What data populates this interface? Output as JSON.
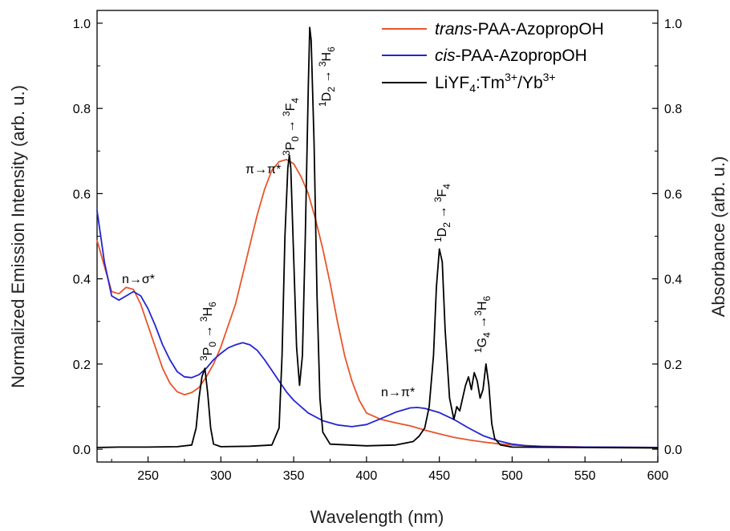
{
  "chart_data": {
    "type": "line",
    "xlabel": "Wavelength (nm)",
    "ylabel_left": "Normalized Emission Intensity (arb. u.)",
    "ylabel_right": "Absorbance (arb. u.)",
    "xlim": [
      215,
      600
    ],
    "ylim": [
      -0.03,
      1.03
    ],
    "x_ticks": [
      "250",
      "300",
      "350",
      "400",
      "450",
      "500",
      "550",
      "600"
    ],
    "y_ticks": [
      "0.0",
      "0.2",
      "0.4",
      "0.6",
      "0.8",
      "1.0"
    ],
    "grid": false,
    "legend_position": "top-right",
    "legend": {
      "trans": {
        "prefix": "trans",
        "rest": "-PAA-AzopropOH"
      },
      "cis": {
        "prefix": "cis",
        "rest": "-PAA-AzopropOH"
      },
      "lumin": {
        "main": "LiYF",
        "sub": "4",
        "mid": ":Tm",
        "sup1": "3+",
        "mid2": "/Yb",
        "sup2": "3+"
      }
    },
    "annotations": {
      "n_sigma": "n→σ*",
      "pi_pi": "π→π*",
      "n_pi": "n→π*",
      "t1": {
        "sup1": "3",
        "a": "P",
        "sub1": "0",
        "arrow": " → ",
        "sup2": "3",
        "b": "H",
        "sub2": "6"
      },
      "t2": {
        "sup1": "3",
        "a": "P",
        "sub1": "0",
        "arrow": " → ",
        "sup2": "3",
        "b": "F",
        "sub2": "4"
      },
      "t3": {
        "sup1": "1",
        "a": "D",
        "sub1": "2",
        "arrow": " → ",
        "sup2": "3",
        "b": "H",
        "sub2": "6"
      },
      "t4": {
        "sup1": "1",
        "a": "D",
        "sub1": "2",
        "arrow": " → ",
        "sup2": "3",
        "b": "F",
        "sub2": "4"
      },
      "t5": {
        "sup1": "1",
        "a": "G",
        "sub1": "4",
        "arrow": " →",
        "sup2": "3",
        "b": "H",
        "sub2": "6"
      }
    },
    "series": [
      {
        "name": "trans-PAA-AzopropOH",
        "color": "#e8552a",
        "x": [
          215,
          220,
          225,
          230,
          235,
          240,
          245,
          250,
          255,
          260,
          265,
          270,
          275,
          280,
          285,
          290,
          295,
          300,
          305,
          310,
          315,
          320,
          325,
          330,
          335,
          340,
          345,
          350,
          355,
          360,
          365,
          370,
          375,
          380,
          385,
          390,
          395,
          400,
          410,
          420,
          430,
          440,
          450,
          460,
          470,
          480,
          490,
          500,
          520,
          550,
          600
        ],
        "y": [
          0.49,
          0.43,
          0.37,
          0.365,
          0.38,
          0.375,
          0.34,
          0.29,
          0.24,
          0.19,
          0.155,
          0.135,
          0.128,
          0.133,
          0.145,
          0.17,
          0.2,
          0.24,
          0.29,
          0.34,
          0.41,
          0.48,
          0.55,
          0.61,
          0.655,
          0.675,
          0.68,
          0.67,
          0.64,
          0.6,
          0.54,
          0.47,
          0.39,
          0.3,
          0.22,
          0.16,
          0.115,
          0.085,
          0.07,
          0.062,
          0.055,
          0.045,
          0.036,
          0.028,
          0.022,
          0.017,
          0.013,
          0.01,
          0.007,
          0.005,
          0.004
        ]
      },
      {
        "name": "cis-PAA-AzopropOH",
        "color": "#2424d4",
        "x": [
          215,
          220,
          225,
          230,
          235,
          240,
          245,
          250,
          255,
          260,
          265,
          270,
          275,
          280,
          285,
          290,
          295,
          300,
          305,
          310,
          315,
          320,
          325,
          330,
          335,
          340,
          345,
          350,
          355,
          360,
          370,
          380,
          390,
          400,
          410,
          420,
          430,
          435,
          440,
          450,
          460,
          470,
          480,
          490,
          500,
          510,
          520,
          550,
          600
        ],
        "y": [
          0.56,
          0.44,
          0.36,
          0.35,
          0.36,
          0.37,
          0.36,
          0.33,
          0.29,
          0.245,
          0.21,
          0.182,
          0.17,
          0.168,
          0.175,
          0.19,
          0.21,
          0.225,
          0.238,
          0.245,
          0.25,
          0.245,
          0.232,
          0.21,
          0.185,
          0.16,
          0.135,
          0.115,
          0.1,
          0.085,
          0.067,
          0.057,
          0.053,
          0.058,
          0.072,
          0.087,
          0.097,
          0.098,
          0.096,
          0.086,
          0.07,
          0.05,
          0.032,
          0.02,
          0.012,
          0.008,
          0.006,
          0.005,
          0.004
        ]
      },
      {
        "name": "LiYF4:Tm3+/Yb3+",
        "color": "#000000",
        "x": [
          215,
          230,
          250,
          270,
          280,
          283,
          285,
          287,
          289,
          291,
          293,
          295,
          300,
          320,
          335,
          340,
          342,
          344,
          346,
          347,
          348,
          350,
          352,
          354,
          356,
          358,
          360,
          361,
          362,
          364,
          366,
          368,
          370,
          375,
          400,
          420,
          432,
          436,
          440,
          443,
          446,
          448,
          450,
          452,
          454,
          457,
          460,
          462,
          464,
          466,
          468,
          470,
          472,
          474,
          476,
          478,
          480,
          482,
          484,
          486,
          488,
          492,
          500,
          550,
          600
        ],
        "y": [
          0.004,
          0.005,
          0.005,
          0.006,
          0.01,
          0.05,
          0.12,
          0.17,
          0.19,
          0.13,
          0.05,
          0.012,
          0.006,
          0.007,
          0.01,
          0.05,
          0.22,
          0.5,
          0.66,
          0.69,
          0.66,
          0.45,
          0.24,
          0.15,
          0.22,
          0.5,
          0.85,
          0.99,
          0.96,
          0.72,
          0.36,
          0.12,
          0.04,
          0.012,
          0.008,
          0.01,
          0.018,
          0.03,
          0.05,
          0.1,
          0.22,
          0.38,
          0.47,
          0.44,
          0.28,
          0.12,
          0.07,
          0.1,
          0.09,
          0.12,
          0.15,
          0.17,
          0.14,
          0.18,
          0.16,
          0.12,
          0.14,
          0.2,
          0.15,
          0.06,
          0.025,
          0.01,
          0.005,
          0.004,
          0.003
        ]
      }
    ]
  }
}
